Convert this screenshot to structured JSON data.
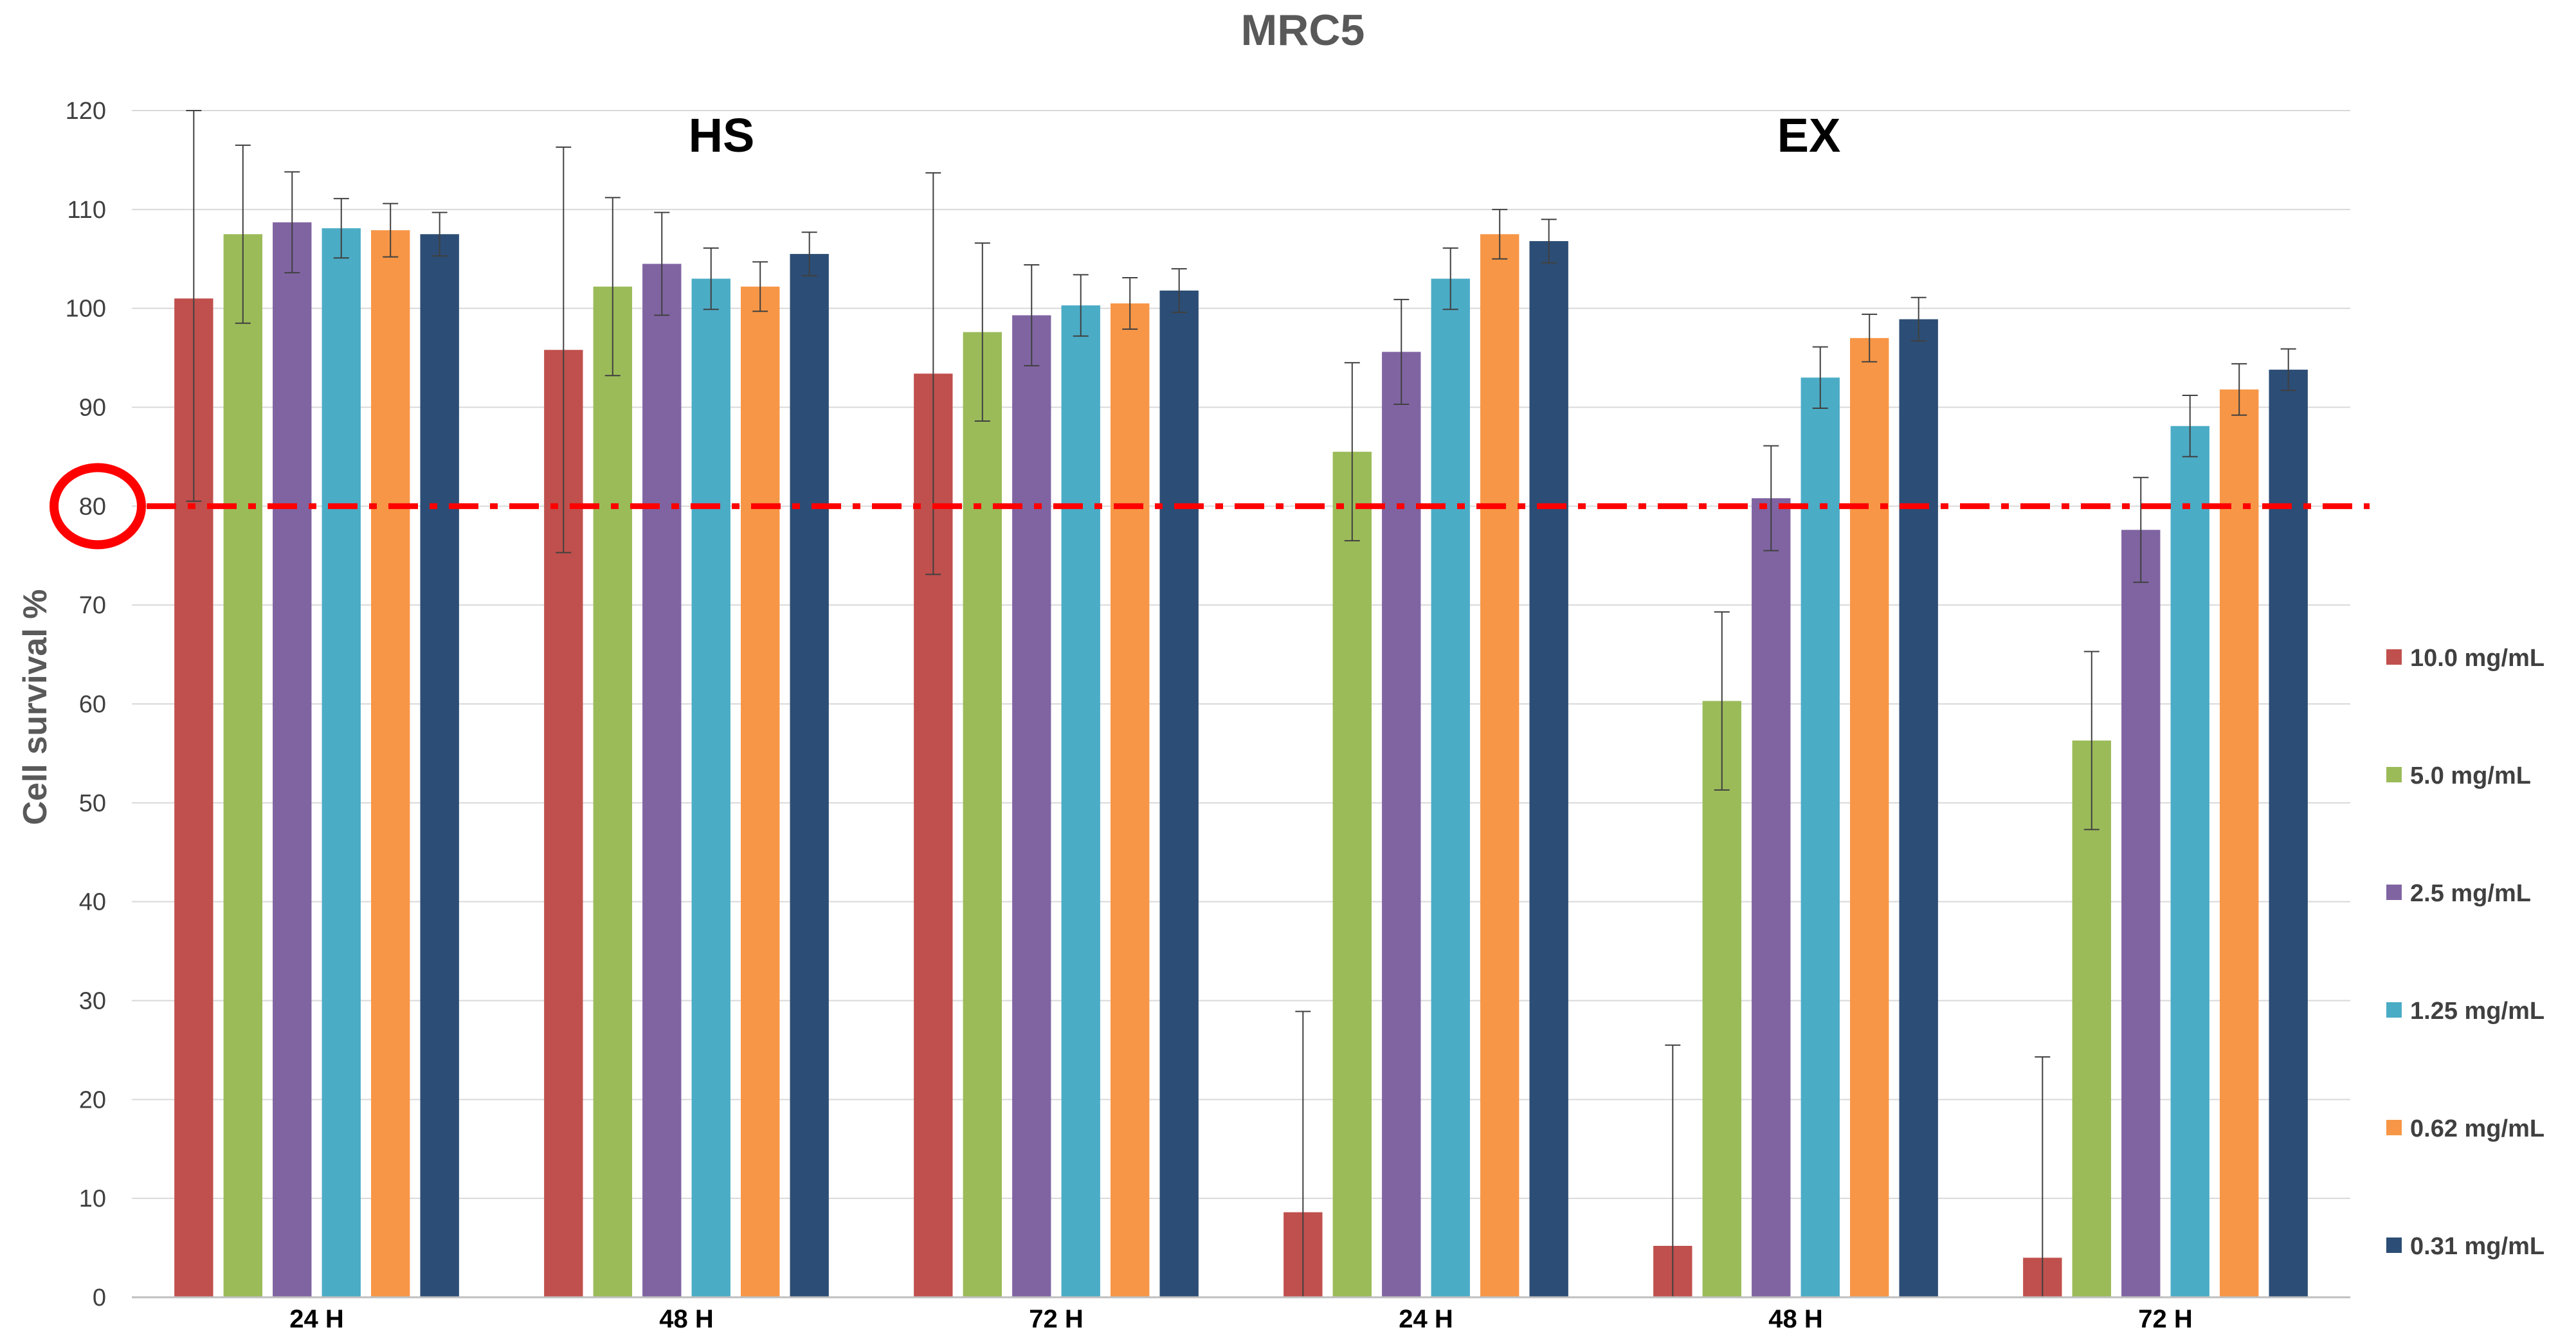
{
  "chart_data": {
    "type": "bar",
    "title": "MRC5",
    "ylabel": "Cell survival %",
    "xlabel": "",
    "ylim": [
      0,
      120
    ],
    "yticks": [
      0,
      10,
      20,
      30,
      40,
      50,
      60,
      70,
      80,
      90,
      100,
      110,
      120
    ],
    "categories": [
      "24 H",
      "48 H",
      "72 H",
      "24 H",
      "48 H",
      "72 H"
    ],
    "groups": [
      {
        "label": "HS",
        "categories": [
          0,
          1,
          2
        ]
      },
      {
        "label": "EX",
        "categories": [
          3,
          4,
          5
        ]
      }
    ],
    "threshold": {
      "value": 80,
      "label": "80",
      "color": "#ff0000",
      "style": "dash-dot",
      "highlight": "circle"
    },
    "grid": true,
    "legend_position": "right",
    "series": [
      {
        "name": "10.0 mg/mL",
        "color": "#c0504d",
        "values": [
          101.0,
          95.8,
          93.4,
          8.6,
          5.2,
          4.0
        ],
        "errors": [
          20.5,
          20.5,
          20.3,
          20.3,
          20.3,
          20.3
        ]
      },
      {
        "name": "5.0 mg/mL",
        "color": "#9bbb59",
        "values": [
          107.5,
          102.2,
          97.6,
          85.5,
          60.3,
          56.3
        ],
        "errors": [
          9.0,
          9.0,
          9.0,
          9.0,
          9.0,
          9.0
        ]
      },
      {
        "name": "2.5 mg/mL",
        "color": "#8064a2",
        "values": [
          108.7,
          104.5,
          99.3,
          95.6,
          80.8,
          77.6
        ],
        "errors": [
          5.1,
          5.2,
          5.1,
          5.3,
          5.3,
          5.3
        ]
      },
      {
        "name": "1.25 mg/mL",
        "color": "#4bacc6",
        "values": [
          108.1,
          103.0,
          100.3,
          103.0,
          93.0,
          88.1
        ],
        "errors": [
          3.0,
          3.1,
          3.1,
          3.1,
          3.1,
          3.1
        ]
      },
      {
        "name": "0.62 mg/mL",
        "color": "#f79646",
        "values": [
          107.9,
          102.2,
          100.5,
          107.5,
          97.0,
          91.8
        ],
        "errors": [
          2.7,
          2.5,
          2.6,
          2.5,
          2.4,
          2.6
        ]
      },
      {
        "name": "0.31 mg/mL",
        "color": "#2c4d75",
        "values": [
          107.5,
          105.5,
          101.8,
          106.8,
          98.9,
          93.8
        ],
        "errors": [
          2.2,
          2.2,
          2.2,
          2.2,
          2.2,
          2.1
        ]
      }
    ]
  }
}
